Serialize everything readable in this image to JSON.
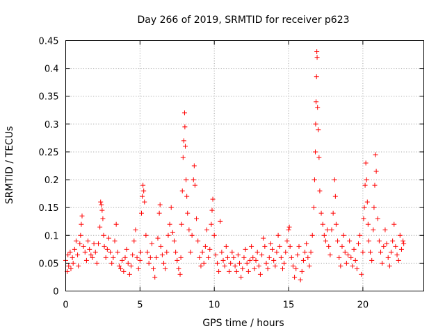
{
  "chart_data": {
    "type": "scatter",
    "title": "Day 266 of 2019, SRMTID for receiver p623",
    "xlabel": "GPS time / hours",
    "ylabel": "SRMTID / TECUs",
    "xlim": [
      0,
      24.1
    ],
    "ylim": [
      0,
      0.45
    ],
    "xticks": [
      0,
      5,
      10,
      15,
      20
    ],
    "xtick_labels": [
      "0",
      "5",
      "10",
      "15",
      "20"
    ],
    "yticks": [
      0,
      0.05,
      0.1,
      0.15,
      0.2,
      0.25,
      0.3,
      0.35,
      0.4,
      0.45
    ],
    "ytick_labels": [
      "0",
      "0.05",
      "0.1",
      "0.15",
      "0.2",
      "0.25",
      "0.3",
      "0.35",
      "0.4",
      "0.45"
    ],
    "grid": true,
    "marker": "+",
    "color": "#ff0000",
    "series": [
      {
        "name": "p623",
        "points": [
          [
            0.0,
            0.055
          ],
          [
            0.1,
            0.035
          ],
          [
            0.15,
            0.065
          ],
          [
            0.2,
            0.045
          ],
          [
            0.3,
            0.07
          ],
          [
            0.35,
            0.04
          ],
          [
            0.45,
            0.06
          ],
          [
            0.5,
            0.05
          ],
          [
            0.6,
            0.075
          ],
          [
            0.7,
            0.09
          ],
          [
            0.8,
            0.065
          ],
          [
            0.85,
            0.045
          ],
          [
            0.95,
            0.085
          ],
          [
            1.0,
            0.1
          ],
          [
            1.05,
            0.12
          ],
          [
            1.1,
            0.135
          ],
          [
            1.2,
            0.08
          ],
          [
            1.3,
            0.07
          ],
          [
            1.4,
            0.055
          ],
          [
            1.5,
            0.09
          ],
          [
            1.6,
            0.075
          ],
          [
            1.7,
            0.065
          ],
          [
            1.8,
            0.06
          ],
          [
            1.9,
            0.085
          ],
          [
            2.0,
            0.07
          ],
          [
            2.1,
            0.05
          ],
          [
            2.2,
            0.085
          ],
          [
            2.3,
            0.115
          ],
          [
            2.35,
            0.16
          ],
          [
            2.4,
            0.155
          ],
          [
            2.45,
            0.145
          ],
          [
            2.5,
            0.13
          ],
          [
            2.55,
            0.1
          ],
          [
            2.6,
            0.08
          ],
          [
            2.7,
            0.06
          ],
          [
            2.8,
            0.075
          ],
          [
            2.9,
            0.095
          ],
          [
            3.0,
            0.07
          ],
          [
            3.1,
            0.05
          ],
          [
            3.2,
            0.06
          ],
          [
            3.3,
            0.09
          ],
          [
            3.4,
            0.12
          ],
          [
            3.5,
            0.07
          ],
          [
            3.6,
            0.045
          ],
          [
            3.7,
            0.04
          ],
          [
            3.8,
            0.055
          ],
          [
            3.9,
            0.035
          ],
          [
            4.0,
            0.06
          ],
          [
            4.1,
            0.075
          ],
          [
            4.2,
            0.05
          ],
          [
            4.3,
            0.03
          ],
          [
            4.4,
            0.045
          ],
          [
            4.5,
            0.065
          ],
          [
            4.6,
            0.09
          ],
          [
            4.7,
            0.11
          ],
          [
            4.8,
            0.06
          ],
          [
            4.9,
            0.04
          ],
          [
            5.0,
            0.055
          ],
          [
            5.05,
            0.07
          ],
          [
            5.1,
            0.14
          ],
          [
            5.15,
            0.17
          ],
          [
            5.2,
            0.19
          ],
          [
            5.25,
            0.18
          ],
          [
            5.3,
            0.16
          ],
          [
            5.4,
            0.1
          ],
          [
            5.5,
            0.07
          ],
          [
            5.6,
            0.05
          ],
          [
            5.7,
            0.06
          ],
          [
            5.8,
            0.085
          ],
          [
            5.9,
            0.04
          ],
          [
            6.0,
            0.025
          ],
          [
            6.1,
            0.06
          ],
          [
            6.2,
            0.095
          ],
          [
            6.3,
            0.14
          ],
          [
            6.35,
            0.155
          ],
          [
            6.4,
            0.08
          ],
          [
            6.5,
            0.065
          ],
          [
            6.6,
            0.05
          ],
          [
            6.7,
            0.04
          ],
          [
            6.8,
            0.07
          ],
          [
            6.9,
            0.1
          ],
          [
            7.0,
            0.12
          ],
          [
            7.1,
            0.15
          ],
          [
            7.2,
            0.105
          ],
          [
            7.3,
            0.09
          ],
          [
            7.4,
            0.07
          ],
          [
            7.5,
            0.055
          ],
          [
            7.6,
            0.04
          ],
          [
            7.7,
            0.03
          ],
          [
            7.75,
            0.06
          ],
          [
            7.8,
            0.12
          ],
          [
            7.85,
            0.18
          ],
          [
            7.9,
            0.24
          ],
          [
            7.95,
            0.27
          ],
          [
            8.0,
            0.32
          ],
          [
            8.02,
            0.295
          ],
          [
            8.05,
            0.26
          ],
          [
            8.1,
            0.2
          ],
          [
            8.15,
            0.17
          ],
          [
            8.2,
            0.14
          ],
          [
            8.3,
            0.11
          ],
          [
            8.4,
            0.07
          ],
          [
            8.5,
            0.1
          ],
          [
            8.6,
            0.2
          ],
          [
            8.65,
            0.225
          ],
          [
            8.7,
            0.19
          ],
          [
            8.8,
            0.13
          ],
          [
            8.9,
            0.09
          ],
          [
            9.0,
            0.06
          ],
          [
            9.1,
            0.045
          ],
          [
            9.2,
            0.07
          ],
          [
            9.3,
            0.05
          ],
          [
            9.4,
            0.08
          ],
          [
            9.5,
            0.11
          ],
          [
            9.6,
            0.06
          ],
          [
            9.7,
            0.075
          ],
          [
            9.8,
            0.12
          ],
          [
            9.85,
            0.145
          ],
          [
            9.9,
            0.165
          ],
          [
            10.0,
            0.1
          ],
          [
            10.1,
            0.065
          ],
          [
            10.2,
            0.05
          ],
          [
            10.3,
            0.035
          ],
          [
            10.4,
            0.125
          ],
          [
            10.5,
            0.07
          ],
          [
            10.6,
            0.055
          ],
          [
            10.7,
            0.045
          ],
          [
            10.8,
            0.08
          ],
          [
            10.9,
            0.06
          ],
          [
            11.0,
            0.035
          ],
          [
            11.1,
            0.05
          ],
          [
            11.2,
            0.07
          ],
          [
            11.3,
            0.06
          ],
          [
            11.4,
            0.045
          ],
          [
            11.5,
            0.035
          ],
          [
            11.6,
            0.065
          ],
          [
            11.7,
            0.05
          ],
          [
            11.8,
            0.025
          ],
          [
            11.9,
            0.04
          ],
          [
            12.0,
            0.06
          ],
          [
            12.1,
            0.075
          ],
          [
            12.2,
            0.05
          ],
          [
            12.3,
            0.035
          ],
          [
            12.4,
            0.055
          ],
          [
            12.5,
            0.08
          ],
          [
            12.6,
            0.06
          ],
          [
            12.7,
            0.04
          ],
          [
            12.8,
            0.055
          ],
          [
            12.9,
            0.07
          ],
          [
            13.0,
            0.045
          ],
          [
            13.1,
            0.03
          ],
          [
            13.2,
            0.065
          ],
          [
            13.3,
            0.095
          ],
          [
            13.4,
            0.08
          ],
          [
            13.5,
            0.05
          ],
          [
            13.6,
            0.04
          ],
          [
            13.7,
            0.06
          ],
          [
            13.8,
            0.085
          ],
          [
            13.9,
            0.075
          ],
          [
            14.0,
            0.055
          ],
          [
            14.1,
            0.045
          ],
          [
            14.2,
            0.07
          ],
          [
            14.3,
            0.1
          ],
          [
            14.4,
            0.08
          ],
          [
            14.5,
            0.06
          ],
          [
            14.6,
            0.04
          ],
          [
            14.7,
            0.05
          ],
          [
            14.8,
            0.07
          ],
          [
            14.9,
            0.09
          ],
          [
            15.0,
            0.11
          ],
          [
            15.05,
            0.115
          ],
          [
            15.1,
            0.08
          ],
          [
            15.2,
            0.06
          ],
          [
            15.3,
            0.045
          ],
          [
            15.4,
            0.025
          ],
          [
            15.5,
            0.04
          ],
          [
            15.6,
            0.065
          ],
          [
            15.7,
            0.08
          ],
          [
            15.8,
            0.02
          ],
          [
            15.9,
            0.035
          ],
          [
            16.0,
            0.055
          ],
          [
            16.1,
            0.07
          ],
          [
            16.2,
            0.085
          ],
          [
            16.3,
            0.06
          ],
          [
            16.4,
            0.045
          ],
          [
            16.5,
            0.07
          ],
          [
            16.6,
            0.1
          ],
          [
            16.7,
            0.15
          ],
          [
            16.75,
            0.2
          ],
          [
            16.8,
            0.25
          ],
          [
            16.82,
            0.3
          ],
          [
            16.85,
            0.34
          ],
          [
            16.88,
            0.385
          ],
          [
            16.9,
            0.43
          ],
          [
            16.92,
            0.42
          ],
          [
            16.95,
            0.33
          ],
          [
            17.0,
            0.29
          ],
          [
            17.05,
            0.24
          ],
          [
            17.1,
            0.18
          ],
          [
            17.2,
            0.14
          ],
          [
            17.3,
            0.12
          ],
          [
            17.4,
            0.1
          ],
          [
            17.5,
            0.09
          ],
          [
            17.6,
            0.11
          ],
          [
            17.7,
            0.08
          ],
          [
            17.8,
            0.065
          ],
          [
            17.9,
            0.11
          ],
          [
            18.0,
            0.14
          ],
          [
            18.1,
            0.2
          ],
          [
            18.15,
            0.17
          ],
          [
            18.2,
            0.12
          ],
          [
            18.3,
            0.09
          ],
          [
            18.4,
            0.06
          ],
          [
            18.5,
            0.045
          ],
          [
            18.6,
            0.08
          ],
          [
            18.7,
            0.1
          ],
          [
            18.8,
            0.07
          ],
          [
            18.9,
            0.05
          ],
          [
            19.0,
            0.065
          ],
          [
            19.1,
            0.09
          ],
          [
            19.2,
            0.06
          ],
          [
            19.3,
            0.045
          ],
          [
            19.4,
            0.075
          ],
          [
            19.5,
            0.055
          ],
          [
            19.6,
            0.04
          ],
          [
            19.7,
            0.085
          ],
          [
            19.8,
            0.1
          ],
          [
            19.9,
            0.03
          ],
          [
            20.0,
            0.07
          ],
          [
            20.05,
            0.13
          ],
          [
            20.1,
            0.15
          ],
          [
            20.15,
            0.19
          ],
          [
            20.2,
            0.23
          ],
          [
            20.25,
            0.2
          ],
          [
            20.3,
            0.16
          ],
          [
            20.35,
            0.12
          ],
          [
            20.4,
            0.09
          ],
          [
            20.5,
            0.07
          ],
          [
            20.6,
            0.055
          ],
          [
            20.7,
            0.11
          ],
          [
            20.75,
            0.15
          ],
          [
            20.8,
            0.19
          ],
          [
            20.85,
            0.245
          ],
          [
            20.9,
            0.215
          ],
          [
            21.0,
            0.13
          ],
          [
            21.1,
            0.09
          ],
          [
            21.2,
            0.07
          ],
          [
            21.3,
            0.05
          ],
          [
            21.4,
            0.08
          ],
          [
            21.5,
            0.11
          ],
          [
            21.6,
            0.085
          ],
          [
            21.7,
            0.06
          ],
          [
            21.8,
            0.045
          ],
          [
            21.9,
            0.07
          ],
          [
            22.0,
            0.09
          ],
          [
            22.1,
            0.12
          ],
          [
            22.2,
            0.08
          ],
          [
            22.3,
            0.065
          ],
          [
            22.4,
            0.055
          ],
          [
            22.5,
            0.1
          ],
          [
            22.6,
            0.075
          ],
          [
            22.7,
            0.09
          ],
          [
            22.75,
            0.085
          ]
        ]
      }
    ]
  }
}
